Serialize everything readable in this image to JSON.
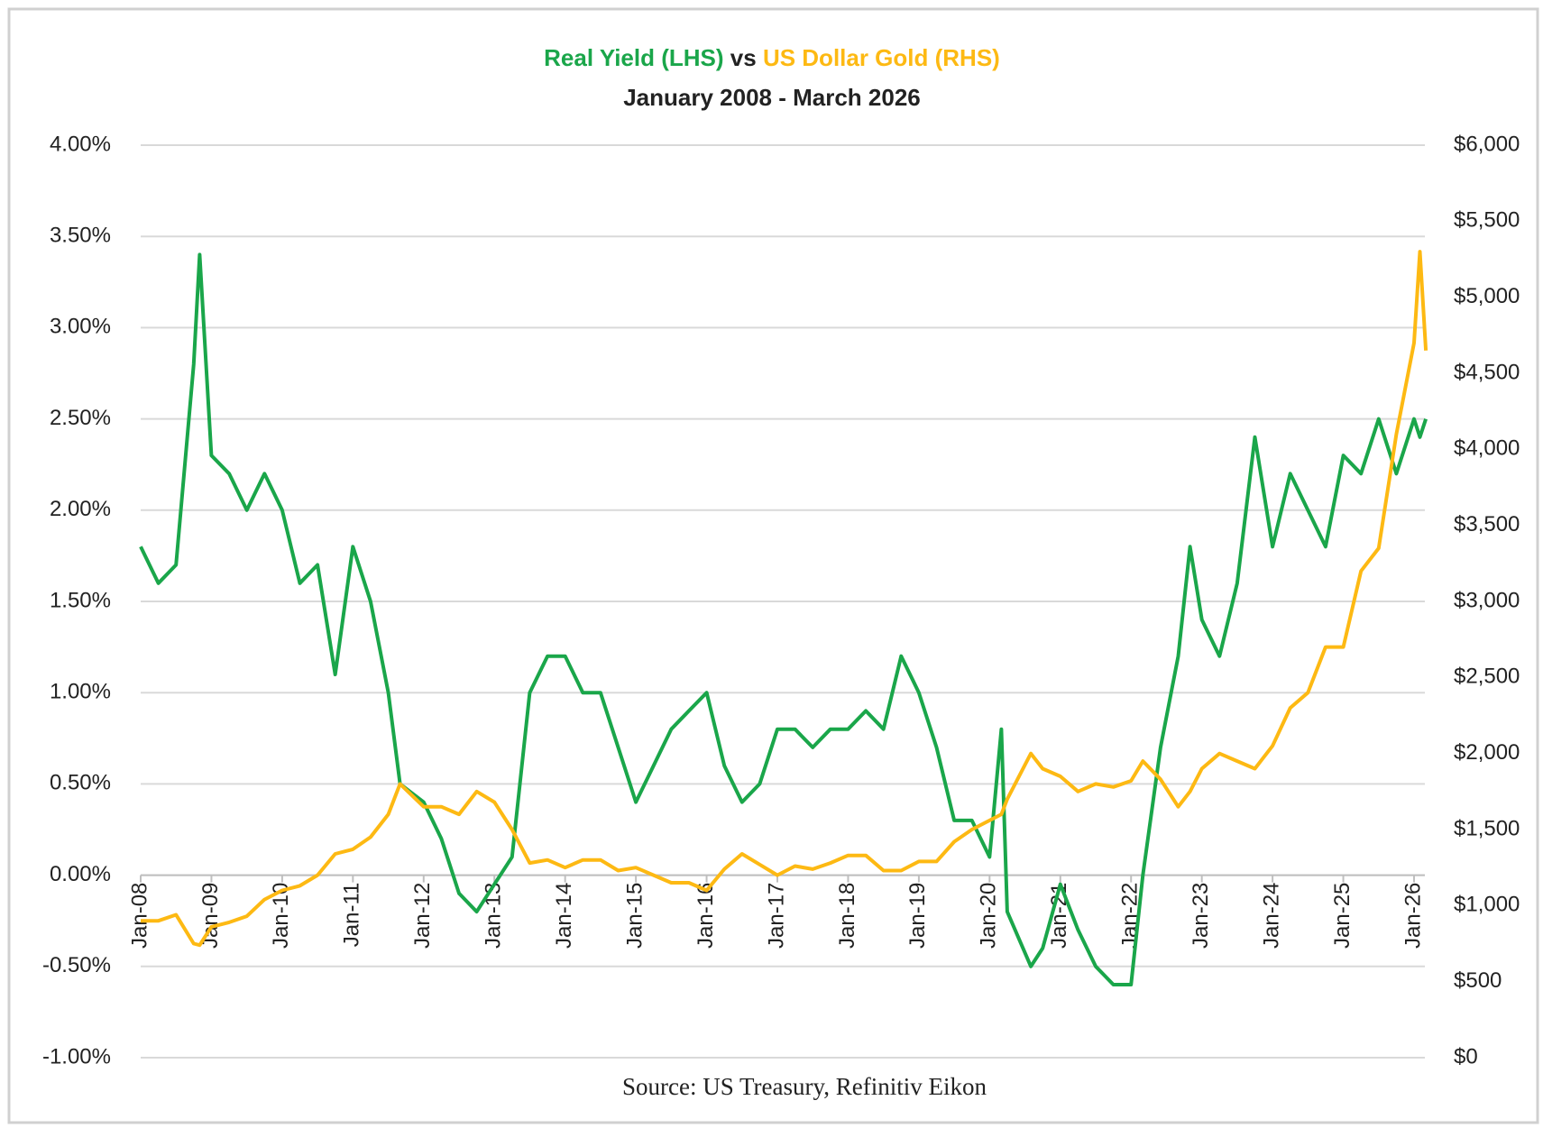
{
  "chart_data": {
    "type": "line",
    "title": [
      "Real Yield (LHS)",
      "vs",
      "US Dollar Gold (RHS)"
    ],
    "subtitle": "January 2008 - March 2026",
    "source": "Source: US Treasury, Refinitiv Eikon",
    "x": [
      "2008-01",
      "2008-04",
      "2008-07",
      "2008-10",
      "2008-11",
      "2009-01",
      "2009-04",
      "2009-07",
      "2009-10",
      "2010-01",
      "2010-04",
      "2010-07",
      "2010-10",
      "2011-01",
      "2011-04",
      "2011-07",
      "2011-09",
      "2012-01",
      "2012-04",
      "2012-07",
      "2012-10",
      "2013-01",
      "2013-04",
      "2013-07",
      "2013-10",
      "2014-01",
      "2014-04",
      "2014-07",
      "2014-10",
      "2015-01",
      "2015-04",
      "2015-07",
      "2015-10",
      "2016-01",
      "2016-04",
      "2016-07",
      "2016-10",
      "2017-01",
      "2017-04",
      "2017-07",
      "2017-10",
      "2018-01",
      "2018-04",
      "2018-07",
      "2018-10",
      "2019-01",
      "2019-04",
      "2019-07",
      "2019-10",
      "2020-01",
      "2020-03",
      "2020-04",
      "2020-08",
      "2020-10",
      "2021-01",
      "2021-04",
      "2021-07",
      "2021-10",
      "2022-01",
      "2022-03",
      "2022-06",
      "2022-09",
      "2022-11",
      "2023-01",
      "2023-04",
      "2023-07",
      "2023-10",
      "2024-01",
      "2024-04",
      "2024-07",
      "2024-10",
      "2025-01",
      "2025-04",
      "2025-07",
      "2025-10",
      "2026-01",
      "2026-02",
      "2026-03"
    ],
    "series": [
      {
        "color": "#1aa64a",
        "values": [
          1.8,
          1.6,
          1.7,
          2.8,
          3.4,
          2.3,
          2.2,
          2.0,
          2.2,
          2.0,
          1.6,
          1.7,
          1.1,
          1.8,
          1.5,
          1.0,
          0.5,
          0.4,
          0.2,
          -0.1,
          -0.2,
          -0.05,
          0.1,
          1.0,
          1.2,
          1.2,
          1.0,
          1.0,
          0.7,
          0.4,
          0.6,
          0.8,
          0.9,
          1.0,
          0.6,
          0.4,
          0.5,
          0.8,
          0.8,
          0.7,
          0.8,
          0.8,
          0.9,
          0.8,
          1.2,
          1.0,
          0.7,
          0.3,
          0.3,
          0.1,
          0.8,
          -0.2,
          -0.5,
          -0.4,
          -0.05,
          -0.3,
          -0.5,
          -0.6,
          -0.6,
          0.0,
          0.7,
          1.2,
          1.8,
          1.4,
          1.2,
          1.6,
          2.4,
          1.8,
          2.2,
          2.0,
          1.8,
          2.3,
          2.2,
          2.5,
          2.2,
          2.5,
          2.4,
          2.5
        ]
      },
      {
        "color": "#fdb913",
        "axis": "y2",
        "values": [
          900,
          900,
          940,
          750,
          740,
          860,
          890,
          930,
          1040,
          1100,
          1130,
          1200,
          1340,
          1370,
          1450,
          1600,
          1800,
          1650,
          1650,
          1600,
          1750,
          1680,
          1500,
          1280,
          1300,
          1250,
          1300,
          1300,
          1230,
          1250,
          1200,
          1150,
          1150,
          1100,
          1240,
          1340,
          1270,
          1200,
          1260,
          1240,
          1280,
          1330,
          1330,
          1230,
          1230,
          1290,
          1290,
          1420,
          1500,
          1560,
          1600,
          1700,
          2000,
          1900,
          1850,
          1750,
          1800,
          1780,
          1820,
          1950,
          1830,
          1650,
          1750,
          1900,
          2000,
          1950,
          1900,
          2050,
          2300,
          2400,
          2700,
          2700,
          3200,
          3350,
          4100,
          4700,
          5300,
          4650
        ]
      }
    ],
    "ylim": [
      -1,
      4
    ],
    "yticks": [
      {
        "value": -1,
        "label": "-1.00%"
      },
      {
        "value": -0.5,
        "label": "-0.50%"
      },
      {
        "value": 0,
        "label": "0.00%"
      },
      {
        "value": 0.5,
        "label": "0.50%"
      },
      {
        "value": 1,
        "label": "1.00%"
      },
      {
        "value": 1.5,
        "label": "1.50%"
      },
      {
        "value": 2,
        "label": "2.00%"
      },
      {
        "value": 2.5,
        "label": "2.50%"
      },
      {
        "value": 3,
        "label": "3.00%"
      },
      {
        "value": 3.5,
        "label": "3.50%"
      },
      {
        "value": 4,
        "label": "4.00%"
      }
    ],
    "y2lim": [
      0,
      6000
    ],
    "y2ticks": [
      {
        "value": 0,
        "label": "$0"
      },
      {
        "value": 500,
        "label": "$500"
      },
      {
        "value": 1000,
        "label": "$1,000"
      },
      {
        "value": 1500,
        "label": "$1,500"
      },
      {
        "value": 2000,
        "label": "$2,000"
      },
      {
        "value": 2500,
        "label": "$2,500"
      },
      {
        "value": 3000,
        "label": "$3,000"
      },
      {
        "value": 3500,
        "label": "$3,500"
      },
      {
        "value": 4000,
        "label": "$4,000"
      },
      {
        "value": 4500,
        "label": "$4,500"
      },
      {
        "value": 5000,
        "label": "$5,000"
      },
      {
        "value": 5500,
        "label": "$5,500"
      },
      {
        "value": 6000,
        "label": "$6,000"
      }
    ],
    "xticks": [
      {
        "value": "2008-01",
        "label": "Jan-08"
      },
      {
        "value": "2009-01",
        "label": "Jan-09"
      },
      {
        "value": "2010-01",
        "label": "Jan-10"
      },
      {
        "value": "2011-01",
        "label": "Jan-11"
      },
      {
        "value": "2012-01",
        "label": "Jan-12"
      },
      {
        "value": "2013-01",
        "label": "Jan-13"
      },
      {
        "value": "2014-01",
        "label": "Jan-14"
      },
      {
        "value": "2015-01",
        "label": "Jan-15"
      },
      {
        "value": "2016-01",
        "label": "Jan-16"
      },
      {
        "value": "2017-01",
        "label": "Jan-17"
      },
      {
        "value": "2018-01",
        "label": "Jan-18"
      },
      {
        "value": "2019-01",
        "label": "Jan-19"
      },
      {
        "value": "2020-01",
        "label": "Jan-20"
      },
      {
        "value": "2021-01",
        "label": "Jan-21"
      },
      {
        "value": "2022-01",
        "label": "Jan-22"
      },
      {
        "value": "2023-01",
        "label": "Jan-23"
      },
      {
        "value": "2024-01",
        "label": "Jan-24"
      },
      {
        "value": "2025-01",
        "label": "Jan-25"
      },
      {
        "value": "2026-01",
        "label": "Jan-26"
      }
    ],
    "grid": true
  }
}
